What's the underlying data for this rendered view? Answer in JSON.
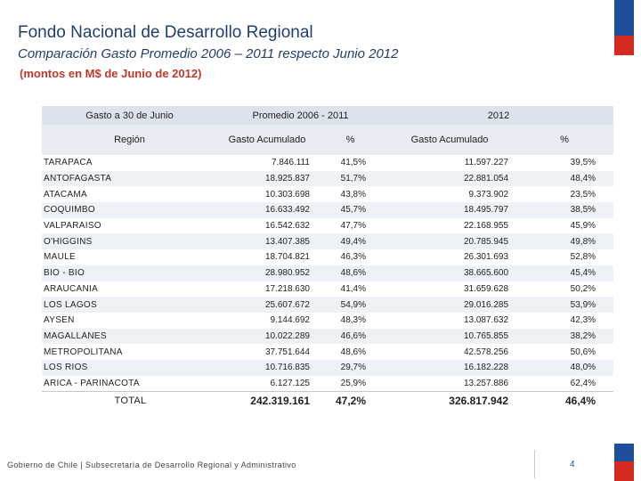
{
  "header": {
    "title": "Fondo Nacional de Desarrollo Regional",
    "subtitle": "Comparación Gasto Promedio 2006 – 2011 respecto Junio 2012",
    "note": "(montos en M$ de Junio de 2012)"
  },
  "table": {
    "group_headers": [
      "Gasto a 30 de Junio",
      "Promedio 2006 - 2011",
      "2012"
    ],
    "sub_headers": [
      "Región",
      "Gasto Acumulado",
      "%",
      "Gasto Acumulado",
      "%"
    ],
    "rows": [
      {
        "region": "TARAPACA",
        "avg_gasto": "7.846.111",
        "avg_pct": "41,5%",
        "g2012": "11.597.227",
        "pct2012": "39,5%"
      },
      {
        "region": "ANTOFAGASTA",
        "avg_gasto": "18.925.837",
        "avg_pct": "51,7%",
        "g2012": "22.881.054",
        "pct2012": "48,4%"
      },
      {
        "region": "ATACAMA",
        "avg_gasto": "10.303.698",
        "avg_pct": "43,8%",
        "g2012": "9.373.902",
        "pct2012": "23,5%"
      },
      {
        "region": "COQUIMBO",
        "avg_gasto": "16.633.492",
        "avg_pct": "45,7%",
        "g2012": "18.495.797",
        "pct2012": "38,5%"
      },
      {
        "region": "VALPARAISO",
        "avg_gasto": "16.542.632",
        "avg_pct": "47,7%",
        "g2012": "22.168.955",
        "pct2012": "45,9%"
      },
      {
        "region": "O'HIGGINS",
        "avg_gasto": "13.407.385",
        "avg_pct": "49,4%",
        "g2012": "20.785.945",
        "pct2012": "49,8%"
      },
      {
        "region": "MAULE",
        "avg_gasto": "18.704.821",
        "avg_pct": "46,3%",
        "g2012": "26.301.693",
        "pct2012": "52,8%"
      },
      {
        "region": "BIO - BIO",
        "avg_gasto": "28.980.952",
        "avg_pct": "48,6%",
        "g2012": "38.665.600",
        "pct2012": "45,4%"
      },
      {
        "region": "ARAUCANIA",
        "avg_gasto": "17.218.630",
        "avg_pct": "41,4%",
        "g2012": "31.659.628",
        "pct2012": "50,2%"
      },
      {
        "region": "LOS LAGOS",
        "avg_gasto": "25.607.672",
        "avg_pct": "54,9%",
        "g2012": "29.016.285",
        "pct2012": "53,9%"
      },
      {
        "region": "AYSEN",
        "avg_gasto": "9.144.692",
        "avg_pct": "48,3%",
        "g2012": "13.087.632",
        "pct2012": "42,3%"
      },
      {
        "region": "MAGALLANES",
        "avg_gasto": "10.022.289",
        "avg_pct": "46,6%",
        "g2012": "10.765.855",
        "pct2012": "38,2%"
      },
      {
        "region": "METROPOLITANA",
        "avg_gasto": "37.751.644",
        "avg_pct": "48,6%",
        "g2012": "42.578.256",
        "pct2012": "50,6%"
      },
      {
        "region": "LOS RIOS",
        "avg_gasto": "10.716.835",
        "avg_pct": "29,7%",
        "g2012": "16.182.228",
        "pct2012": "48,0%"
      },
      {
        "region": "ARICA - PARINACOTA",
        "avg_gasto": "6.127.125",
        "avg_pct": "25,9%",
        "g2012": "13.257.886",
        "pct2012": "62,4%"
      }
    ],
    "total": {
      "label": "TOTAL",
      "avg_gasto": "242.319.161",
      "avg_pct": "47,2%",
      "g2012": "326.817.942",
      "pct2012": "46,4%"
    }
  },
  "footer": {
    "text": "Gobierno de Chile | Subsecretaría de Desarrollo Regional y Administrativo",
    "page": "4"
  },
  "colors": {
    "flag_blue": "#1d4f9c",
    "flag_red": "#d52b1e",
    "title": "#1f3f6e",
    "note": "#c0392b"
  }
}
